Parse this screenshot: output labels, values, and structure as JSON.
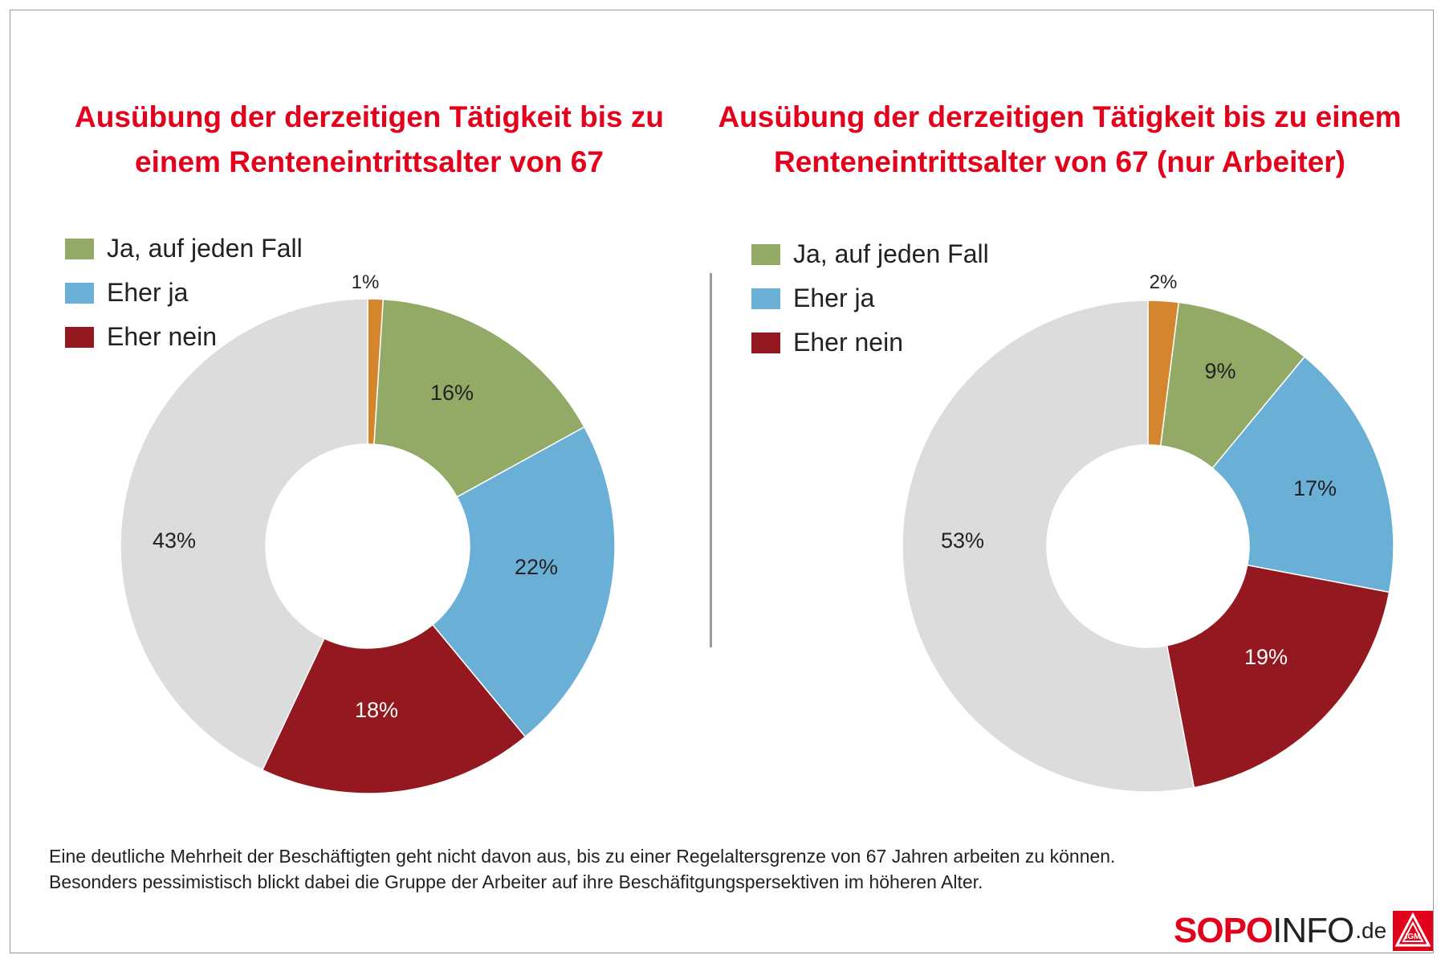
{
  "chart_data": [
    {
      "type": "pie",
      "title": "Ausübung der derzeitigen Tätigkeit bis zu\neinem Renteneintrittsalter von 67",
      "legend": [
        {
          "label": "Ja, auf jeden Fall",
          "color": "#93a966"
        },
        {
          "label": "Eher ja",
          "color": "#6aafd6"
        },
        {
          "label": "Eher nein",
          "color": "#93181f"
        }
      ],
      "slices": [
        {
          "value": 1,
          "label": "1%",
          "color": "#d3862d"
        },
        {
          "value": 16,
          "label": "16%",
          "color": "#93a966"
        },
        {
          "value": 22,
          "label": "22%",
          "color": "#6aafd6"
        },
        {
          "value": 18,
          "label": "18%",
          "color": "#93181f"
        },
        {
          "value": 43,
          "label": "43%",
          "color": "#dcdcdc"
        }
      ]
    },
    {
      "type": "pie",
      "title": "Ausübung der derzeitigen Tätigkeit bis zu einem\nRenteneintrittsalter von 67 (nur Arbeiter)",
      "legend": [
        {
          "label": "Ja, auf jeden Fall",
          "color": "#93a966"
        },
        {
          "label": "Eher ja",
          "color": "#6aafd6"
        },
        {
          "label": "Eher nein",
          "color": "#93181f"
        }
      ],
      "slices": [
        {
          "value": 2,
          "label": "2%",
          "color": "#d3862d"
        },
        {
          "value": 9,
          "label": "9%",
          "color": "#93a966"
        },
        {
          "value": 17,
          "label": "17%",
          "color": "#6aafd6"
        },
        {
          "value": 19,
          "label": "19%",
          "color": "#93181f"
        },
        {
          "value": 53,
          "label": "53%",
          "color": "#dcdcdc"
        }
      ]
    }
  ],
  "footnote": {
    "line1": "Eine deutliche Mehrheit der Beschäftigten geht nicht davon aus, bis zu einer Regelaltersgrenze von 67 Jahren arbeiten zu können.",
    "line2": "Besonders pessimistisch blickt dabei die Gruppe der Arbeiter auf ihre Beschäfitgungspersektiven im höheren Alter."
  },
  "logo": {
    "part1": "SOPO",
    "part2": "INFO",
    "part3": ".de",
    "emblem_text": "IGM"
  }
}
